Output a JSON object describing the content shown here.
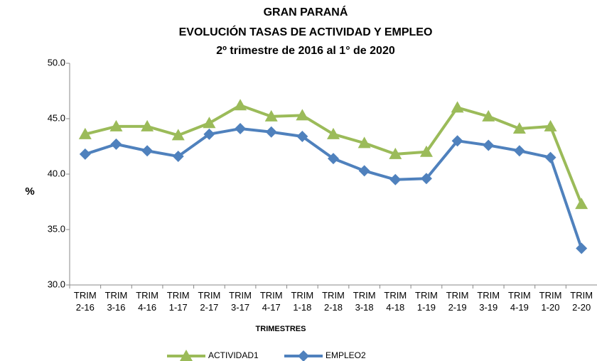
{
  "chart_data": {
    "type": "line",
    "title": [
      "GRAN PARANÁ",
      "EVOLUCIÓN TASAS DE ACTIVIDAD Y EMPLEO",
      "2º trimestre de 2016 al 1° de 2020"
    ],
    "x_label": "TRIMESTRES",
    "y_label": "%",
    "categories": [
      "TRIM 2-16",
      "TRIM 3-16",
      "TRIM 4-16",
      "TRIM 1-17",
      "TRIM 2-17",
      "TRIM 3-17",
      "TRIM 4-17",
      "TRIM 1-18",
      "TRIM 2-18",
      "TRIM 3-18",
      "TRIM 4-18",
      "TRIM 1-19",
      "TRIM 2-19",
      "TRIM 3-19",
      "TRIM 4-19",
      "TRIM 1-20",
      "TRIM 2-20"
    ],
    "series": [
      {
        "name": "ACTIVIDAD1",
        "color": "#9bbb59",
        "marker": "triangle",
        "values": [
          43.6,
          44.3,
          44.3,
          43.5,
          44.6,
          46.2,
          45.2,
          45.3,
          43.6,
          42.8,
          41.8,
          42.0,
          46.0,
          45.2,
          44.1,
          44.3,
          37.3
        ]
      },
      {
        "name": "EMPLEO2",
        "color": "#4f81bd",
        "marker": "diamond",
        "values": [
          41.8,
          42.7,
          42.1,
          41.6,
          43.6,
          44.1,
          43.8,
          43.4,
          41.4,
          40.3,
          39.5,
          39.6,
          43.0,
          42.6,
          42.1,
          41.5,
          33.3
        ]
      }
    ],
    "ylim": [
      30,
      50
    ],
    "yticks": [
      {
        "value": 30,
        "label": "30.0"
      },
      {
        "value": 35,
        "label": "35.0"
      },
      {
        "value": 40,
        "label": "40.0"
      },
      {
        "value": 45,
        "label": "45.0"
      },
      {
        "value": 50,
        "label": "50.0"
      }
    ],
    "grid": false,
    "legend": "bottom"
  }
}
